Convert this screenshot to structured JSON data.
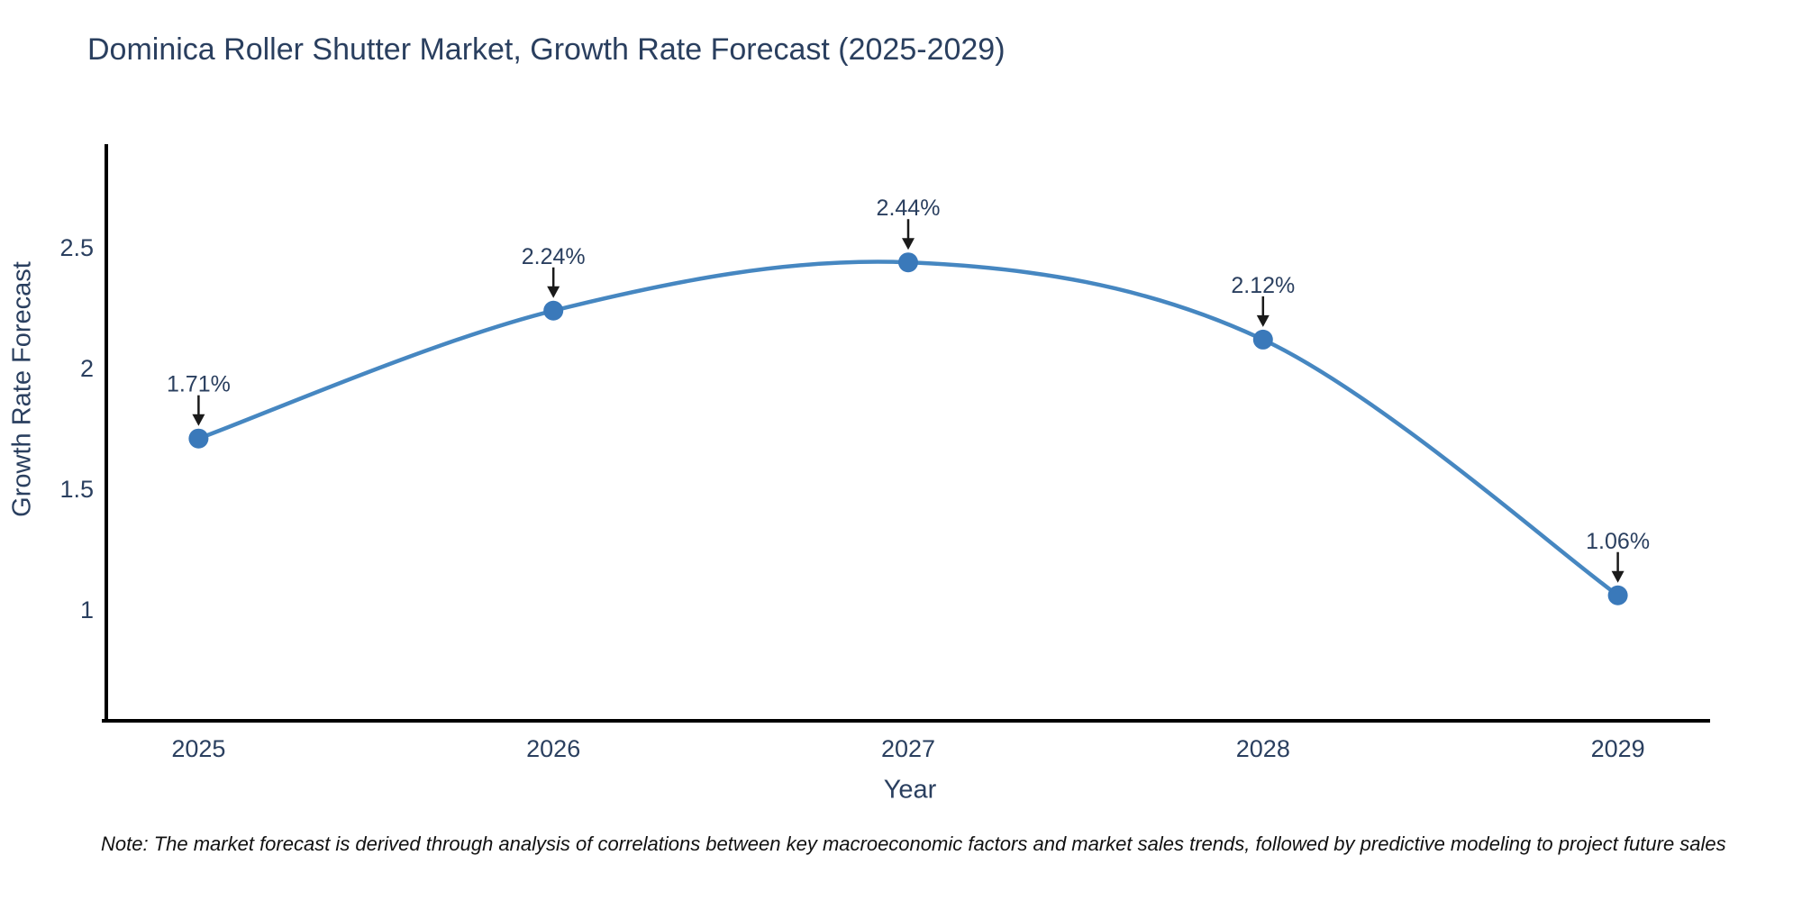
{
  "chart_data": {
    "type": "line",
    "title": "Dominica Roller Shutter Market, Growth Rate Forecast (2025-2029)",
    "xlabel": "Year",
    "ylabel": "Growth Rate Forecast",
    "categories": [
      2025,
      2026,
      2027,
      2028,
      2029
    ],
    "values": [
      1.71,
      2.24,
      2.44,
      2.12,
      1.06
    ],
    "point_labels": [
      "1.71%",
      "2.24%",
      "2.44%",
      "2.12%",
      "1.06%"
    ],
    "yticks": [
      1,
      1.5,
      2,
      2.5
    ],
    "ytick_labels": [
      "1",
      "1.5",
      "2",
      "2.5"
    ],
    "ylim": [
      0.54,
      2.93
    ],
    "xlim": [
      2024.74,
      2029.26
    ],
    "grid": false,
    "legend": false,
    "line_shape": "spline",
    "colors": {
      "line": "#4687c1",
      "marker": "#3a79ba",
      "axis": "#000000",
      "tick_text": "#2a3f5f",
      "annotation_text": "#2a3f5f",
      "annotation_arrow": "#1a1a1a"
    }
  },
  "note": "Note: The market forecast is derived through analysis of correlations between key macroeconomic factors and market sales trends, followed by predictive modeling to project future sales"
}
